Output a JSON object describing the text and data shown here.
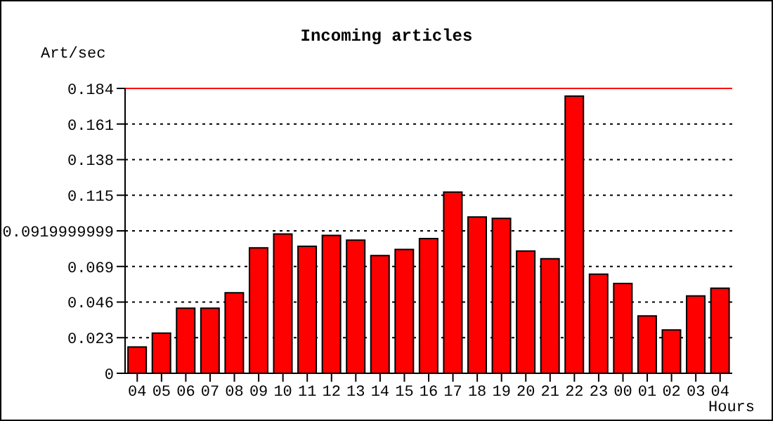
{
  "chart_data": {
    "type": "bar",
    "title": "Incoming articles",
    "ylabel": "Art/sec",
    "xlabel": "Hours",
    "categories": [
      "04",
      "05",
      "06",
      "07",
      "08",
      "09",
      "10",
      "11",
      "12",
      "13",
      "14",
      "15",
      "16",
      "17",
      "18",
      "19",
      "20",
      "21",
      "22",
      "23",
      "00",
      "01",
      "02",
      "03",
      "04"
    ],
    "values": [
      0.017,
      0.026,
      0.042,
      0.042,
      0.052,
      0.081,
      0.09,
      0.082,
      0.089,
      0.086,
      0.076,
      0.08,
      0.087,
      0.117,
      0.101,
      0.1,
      0.079,
      0.074,
      0.179,
      0.064,
      0.058,
      0.037,
      0.028,
      0.05,
      0.055
    ],
    "color": "#ff0000",
    "ylim": [
      0,
      0.184
    ],
    "yticks": [
      0,
      0.023,
      0.046,
      0.069,
      0.0919999999,
      0.115,
      0.138,
      0.161,
      0.184
    ],
    "ref_lines": [
      {
        "axis": "y",
        "value": 0.184,
        "color": "#ff0000"
      }
    ],
    "grid": "y"
  }
}
